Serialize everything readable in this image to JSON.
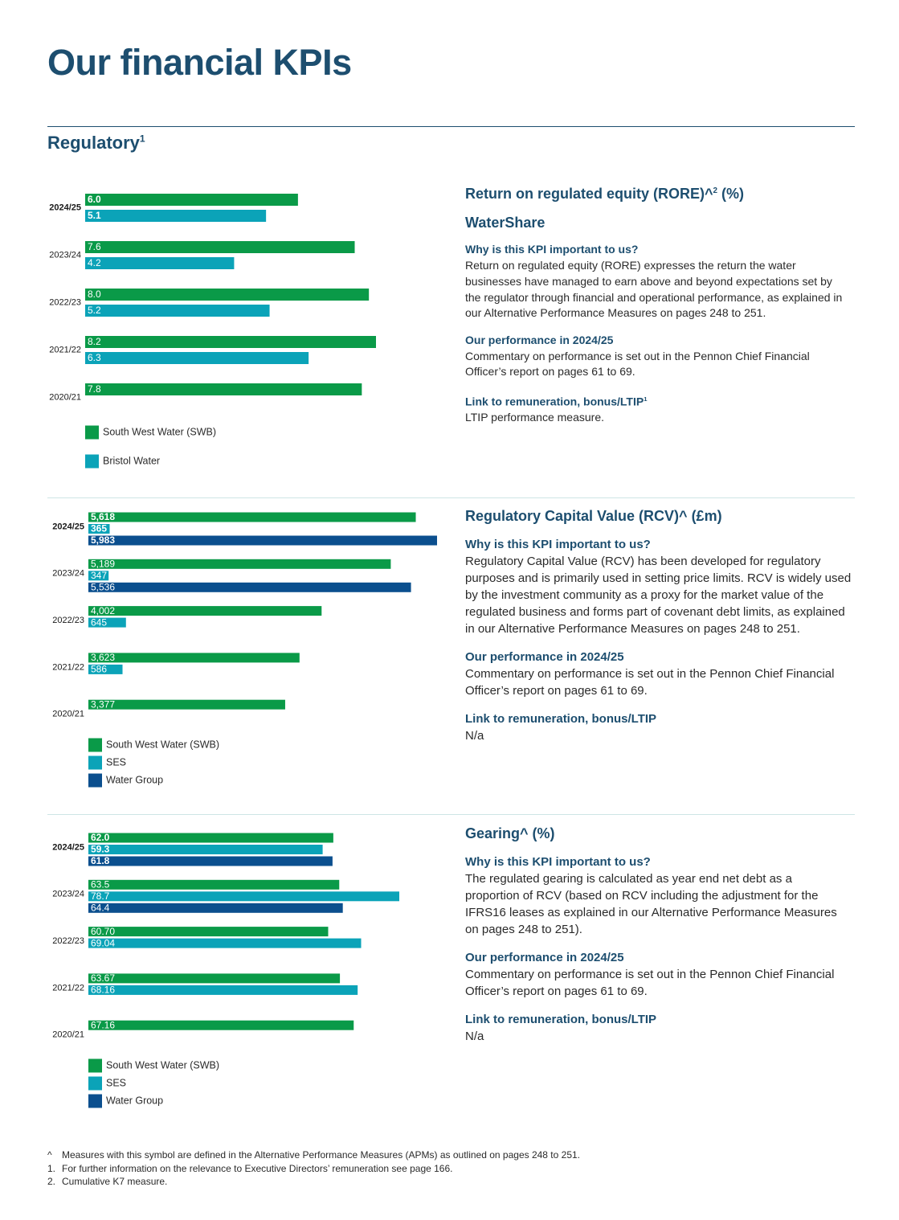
{
  "header": {
    "title": "Our financial KPIs",
    "section": "Regulatory",
    "section_sup": "1"
  },
  "chart_data": [
    {
      "type": "bar",
      "orientation": "horizontal",
      "categories": [
        "2024/25",
        "2023/24",
        "2022/23",
        "2021/22",
        "2020/21"
      ],
      "series": [
        {
          "name": "South West Water (SWB)",
          "color": "#0a9a48",
          "values": [
            6.0,
            7.6,
            8.0,
            8.2,
            7.8
          ],
          "value_labels": [
            "6.0",
            "7.6",
            "8.0",
            "8.2",
            "7.8"
          ]
        },
        {
          "name": "Bristol Water",
          "color": "#0ba3b8",
          "values": [
            5.1,
            4.2,
            5.2,
            6.3,
            null
          ],
          "value_labels": [
            "5.1",
            "4.2",
            "5.2",
            "6.3",
            null
          ]
        }
      ]
    },
    {
      "type": "bar",
      "orientation": "horizontal",
      "categories": [
        "2024/25",
        "2023/24",
        "2022/23",
        "2021/22",
        "2020/21"
      ],
      "series": [
        {
          "name": "South West Water (SWB)",
          "color": "#0a9a48",
          "values": [
            5618,
            5189,
            4002,
            3623,
            3377
          ],
          "value_labels": [
            "5,618",
            "5,189",
            "4,002",
            "3,623",
            "3,377"
          ]
        },
        {
          "name": "SES",
          "color": "#0ba3b8",
          "values": [
            365,
            347,
            645,
            586,
            null
          ],
          "value_labels": [
            "365",
            "347",
            "645",
            "586",
            null
          ]
        },
        {
          "name": "Water Group",
          "color": "#0b4f8e",
          "values": [
            5983,
            5536,
            null,
            null,
            null
          ],
          "value_labels": [
            "5,983",
            "5,536",
            null,
            null,
            null
          ]
        }
      ]
    },
    {
      "type": "bar",
      "orientation": "horizontal",
      "categories": [
        "2024/25",
        "2023/24",
        "2022/23",
        "2021/22",
        "2020/21"
      ],
      "series": [
        {
          "name": "South West Water (SWB)",
          "color": "#0a9a48",
          "values": [
            62.0,
            63.5,
            60.7,
            63.67,
            67.16
          ],
          "value_labels": [
            "62.0",
            "63.5",
            "60.70",
            "63.67",
            "67.16"
          ]
        },
        {
          "name": "SES",
          "color": "#0ba3b8",
          "values": [
            59.3,
            78.7,
            69.04,
            68.16,
            null
          ],
          "value_labels": [
            "59.3",
            "78.7",
            "69.04",
            "68.16",
            null
          ]
        },
        {
          "name": "Water Group",
          "color": "#0b4f8e",
          "values": [
            61.8,
            64.4,
            null,
            null,
            null
          ],
          "value_labels": [
            "61.8",
            "64.4",
            null,
            null,
            null
          ]
        }
      ]
    }
  ],
  "panels": [
    {
      "title": "Return on regulated equity (RORE)^",
      "title_sup": "2",
      "title_tail": " (%)",
      "subtitle": "WaterShare",
      "sections": [
        {
          "heading": "Why is this KPI important to us?",
          "body": "Return on regulated equity (RORE) expresses the return the water businesses have managed to earn above and beyond expectations set by the regulator through financial and operational performance, as explained in our Alternative Performance Measures on pages 248 to 251."
        },
        {
          "heading": "Our performance in 2024/25",
          "body": "Commentary on performance is set out in the Pennon Chief Financial Officer’s report on pages 61 to 69."
        },
        {
          "heading": "Link to remuneration, bonus/LTIP",
          "heading_sup": "1",
          "body": "LTIP performance measure."
        }
      ]
    },
    {
      "title": "Regulatory Capital Value (RCV)^ (£m)",
      "sections": [
        {
          "heading": "Why is this KPI important to us?",
          "body": "Regulatory Capital Value (RCV) has been developed for regulatory purposes and is primarily used in setting price limits. RCV is widely used by the investment community as a proxy for the market value of the regulated business and forms part of covenant debt limits, as explained in our Alternative Performance Measures on pages 248 to 251."
        },
        {
          "heading": "Our performance in 2024/25",
          "body": "Commentary on performance is set out in the Pennon Chief Financial Officer’s report on pages 61 to 69."
        },
        {
          "heading": "Link to remuneration, bonus/LTIP",
          "body": "N/a"
        }
      ]
    },
    {
      "title": "Gearing^ (%)",
      "sections": [
        {
          "heading": "Why is this KPI important to us?",
          "body": "The regulated gearing is calculated as year end net debt as a proportion of RCV (based on RCV including the adjustment for the IFRS16 leases as explained in our Alternative Performance Measures on pages 248 to 251)."
        },
        {
          "heading": "Our performance in 2024/25",
          "body": "Commentary on performance is set out in the Pennon Chief Financial Officer’s report on pages 61 to 69."
        },
        {
          "heading": "Link to remuneration, bonus/LTIP",
          "body": "N/a"
        }
      ]
    }
  ],
  "footnotes": [
    {
      "marker": "^",
      "text": "Measures with this symbol are defined in the Alternative Performance Measures (APMs) as outlined on pages 248 to 251."
    },
    {
      "marker": "1.",
      "text": "For further information on the relevance to Executive Directors’ remuneration see page 166."
    },
    {
      "marker": "2.",
      "text": "Cumulative K7 measure."
    }
  ]
}
